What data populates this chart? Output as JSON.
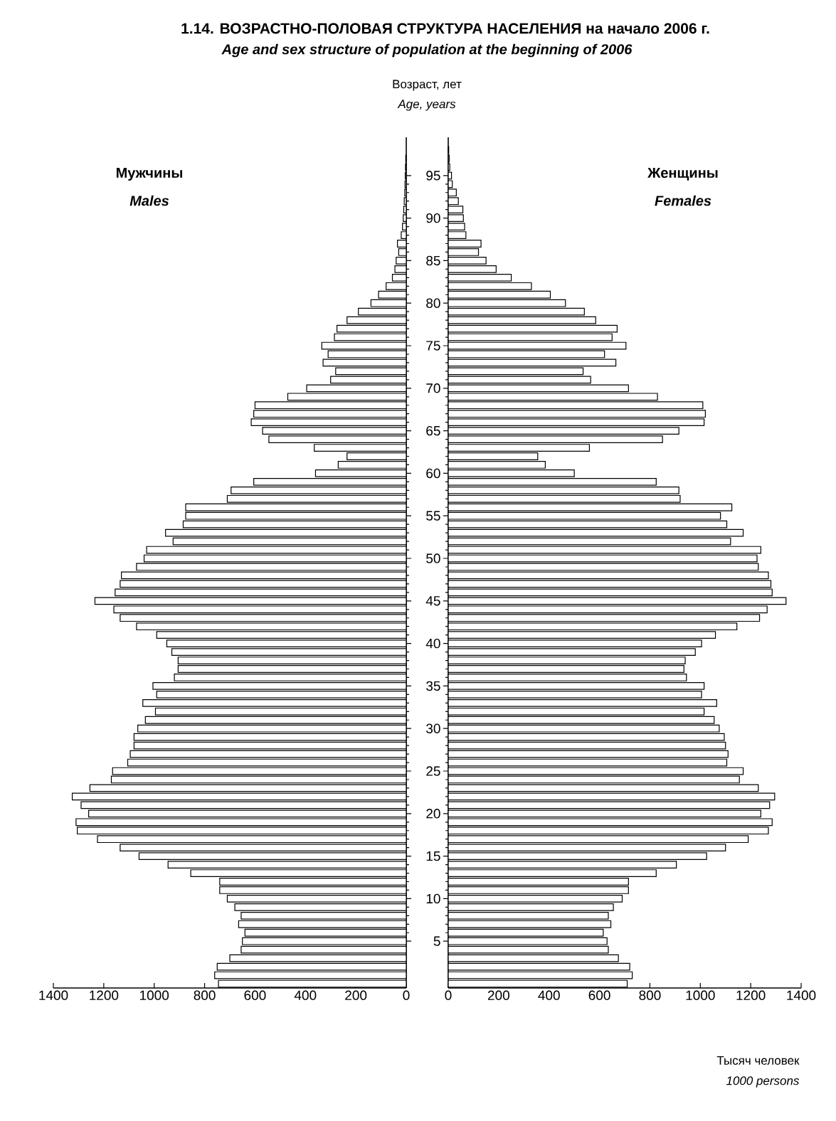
{
  "chart_data": [
    {
      "type": "bar",
      "orientation": "horizontal",
      "title": "1.14. ВОЗРАСТНО-ПОЛОВАЯ СТРУКТУРА НАСЕЛЕНИЯ на начало 2006 г.",
      "subtitle": "Age and sex structure of population at the beginning of 2006",
      "ylabel": "Возраст, лет",
      "annotations": [
        "Males"
      ],
      "x": [
        0,
        1,
        2,
        3,
        4,
        5,
        6,
        7,
        8,
        9,
        10,
        11,
        12,
        13,
        14,
        15,
        16,
        17,
        18,
        19,
        20,
        21,
        22,
        23,
        24,
        25,
        26,
        27,
        28,
        29,
        30,
        31,
        32,
        33,
        34,
        35,
        36,
        37,
        38,
        39,
        40,
        41,
        42,
        43,
        44,
        45,
        46,
        47,
        48,
        49,
        50,
        51,
        52,
        53,
        54,
        55,
        56,
        57,
        58,
        59,
        60,
        61,
        62,
        63,
        64,
        65,
        66,
        67,
        68,
        69,
        70,
        71,
        72,
        73,
        74,
        75,
        76,
        77,
        78,
        79,
        80,
        81,
        82,
        83,
        84,
        85,
        86,
        87,
        88,
        89,
        90,
        91,
        92,
        93,
        94,
        95,
        96,
        97
      ],
      "series": [
        {
          "name": "Мужчины",
          "color": "#ffffff",
          "values": [
            745,
            760,
            750,
            700,
            655,
            650,
            640,
            665,
            655,
            680,
            710,
            740,
            740,
            855,
            945,
            1060,
            1135,
            1225,
            1305,
            1310,
            1260,
            1290,
            1325,
            1255,
            1170,
            1165,
            1105,
            1095,
            1080,
            1080,
            1065,
            1035,
            995,
            1045,
            990,
            1005,
            920,
            905,
            905,
            930,
            950,
            990,
            1070,
            1135,
            1160,
            1235,
            1155,
            1135,
            1130,
            1070,
            1040,
            1030,
            925,
            955,
            885,
            875,
            875,
            710,
            695,
            605,
            360,
            270,
            235,
            365,
            545,
            570,
            615,
            605,
            600,
            470,
            395,
            300,
            280,
            330,
            310,
            335,
            285,
            275,
            235,
            190,
            140,
            110,
            80,
            55,
            45,
            40,
            30,
            35,
            20,
            15,
            12,
            10,
            8,
            6,
            5,
            4,
            3,
            2
          ]
        }
      ],
      "xlim": [
        1400,
        0
      ],
      "xticks": [
        0,
        200,
        400,
        600,
        800,
        1000,
        1200,
        1400
      ],
      "ylim": [
        -0.5,
        99.5
      ],
      "yticks": [
        5,
        10,
        15,
        20,
        25,
        30,
        35,
        40,
        45,
        50,
        55,
        60,
        65,
        70,
        75,
        80,
        85,
        90,
        95
      ],
      "tick_labels": "x"
    },
    {
      "type": "bar",
      "orientation": "horizontal",
      "ylabel": "Age, years",
      "xlabel": "Тысяч человек",
      "annotations": [
        "Females",
        "1000 persons"
      ],
      "x": [
        0,
        1,
        2,
        3,
        4,
        5,
        6,
        7,
        8,
        9,
        10,
        11,
        12,
        13,
        14,
        15,
        16,
        17,
        18,
        19,
        20,
        21,
        22,
        23,
        24,
        25,
        26,
        27,
        28,
        29,
        30,
        31,
        32,
        33,
        34,
        35,
        36,
        37,
        38,
        39,
        40,
        41,
        42,
        43,
        44,
        45,
        46,
        47,
        48,
        49,
        50,
        51,
        52,
        53,
        54,
        55,
        56,
        57,
        58,
        59,
        60,
        61,
        62,
        63,
        64,
        65,
        66,
        67,
        68,
        69,
        70,
        71,
        72,
        73,
        74,
        75,
        76,
        77,
        78,
        79,
        80,
        81,
        82,
        83,
        84,
        85,
        86,
        87,
        88,
        89,
        90,
        91,
        92,
        93,
        94,
        95,
        96,
        97,
        98
      ],
      "series": [
        {
          "name": "Женщины",
          "color": "#ffffff",
          "values": [
            710,
            730,
            720,
            675,
            635,
            630,
            615,
            645,
            635,
            655,
            690,
            715,
            715,
            825,
            905,
            1025,
            1100,
            1190,
            1270,
            1285,
            1240,
            1275,
            1295,
            1230,
            1155,
            1170,
            1105,
            1110,
            1100,
            1095,
            1075,
            1055,
            1015,
            1065,
            1005,
            1015,
            945,
            935,
            940,
            980,
            1005,
            1060,
            1145,
            1235,
            1265,
            1340,
            1285,
            1280,
            1270,
            1230,
            1225,
            1240,
            1120,
            1170,
            1105,
            1080,
            1125,
            920,
            915,
            825,
            500,
            385,
            355,
            560,
            850,
            915,
            1015,
            1020,
            1010,
            830,
            715,
            565,
            535,
            665,
            620,
            705,
            650,
            670,
            585,
            540,
            465,
            405,
            330,
            250,
            190,
            150,
            120,
            130,
            70,
            65,
            60,
            58,
            40,
            32,
            16,
            13,
            6,
            4,
            2
          ]
        }
      ],
      "xlim": [
        0,
        1400
      ],
      "xticks": [
        0,
        200,
        400,
        600,
        800,
        1000,
        1200,
        1400
      ],
      "ylim": [
        -0.5,
        99.5
      ],
      "yticks": [
        5,
        10,
        15,
        20,
        25,
        30,
        35,
        40,
        45,
        50,
        55,
        60,
        65,
        70,
        75,
        80,
        85,
        90,
        95
      ]
    }
  ]
}
